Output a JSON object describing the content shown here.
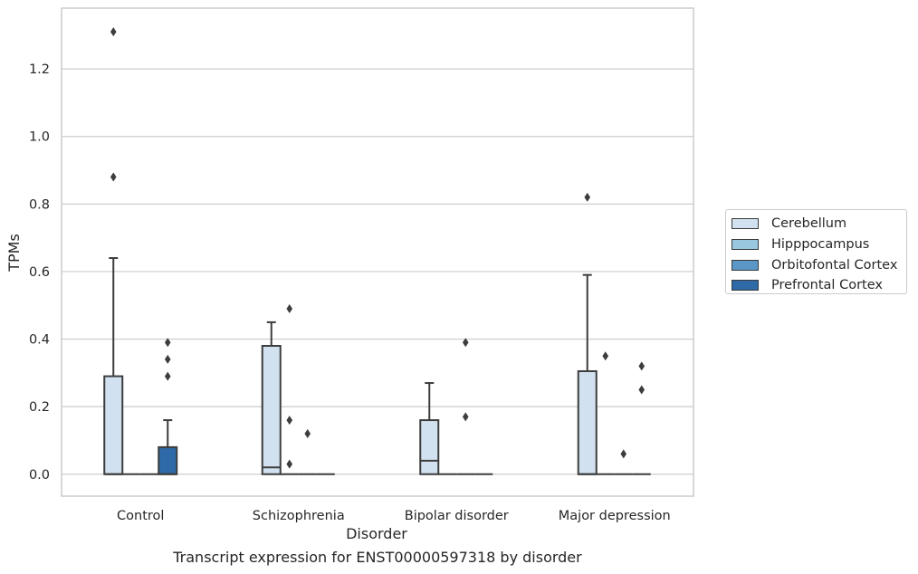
{
  "caption": "Transcript expression for ENST00000597318 by disorder",
  "colors": {
    "Cerebellum": "#d2e1f0",
    "Hipppocampus": "#9ac7e0",
    "Orbitofontal Cortex": "#5a97c6",
    "Prefrontal Cortex": "#2e6aa8",
    "grid": "#cccccc",
    "line": "#3d3d3d"
  },
  "chart_data": {
    "type": "box",
    "xlabel": "Disorder",
    "ylabel": "TPMs",
    "categories": [
      "Control",
      "Schizophrenia",
      "Bipolar disorder",
      "Major depression"
    ],
    "ylim": [
      -0.065,
      1.38
    ],
    "yticks": [
      0.0,
      0.2,
      0.4,
      0.6,
      0.8,
      1.0,
      1.2
    ],
    "ytick_labels": [
      "0.0",
      "0.2",
      "0.4",
      "0.6",
      "0.8",
      "1.0",
      "1.2"
    ],
    "grid": true,
    "legend_position": "right",
    "series": [
      {
        "name": "Cerebellum",
        "boxes": [
          {
            "q1": 0.0,
            "median": 0.0,
            "q3": 0.29,
            "whisker_low": 0.0,
            "whisker_high": 0.64,
            "outliers": [
              0.88,
              1.31
            ]
          },
          {
            "q1": 0.0,
            "median": 0.02,
            "q3": 0.38,
            "whisker_low": 0.0,
            "whisker_high": 0.45,
            "outliers": []
          },
          {
            "q1": 0.0,
            "median": 0.04,
            "q3": 0.16,
            "whisker_low": 0.0,
            "whisker_high": 0.27,
            "outliers": []
          },
          {
            "q1": 0.0,
            "median": 0.0,
            "q3": 0.305,
            "whisker_low": 0.0,
            "whisker_high": 0.59,
            "outliers": [
              0.82
            ]
          }
        ]
      },
      {
        "name": "Hipppocampus",
        "boxes": [
          {
            "q1": 0.0,
            "median": 0.0,
            "q3": 0.0,
            "whisker_low": 0.0,
            "whisker_high": 0.0,
            "outliers": []
          },
          {
            "q1": 0.0,
            "median": 0.0,
            "q3": 0.0,
            "whisker_low": 0.0,
            "whisker_high": 0.0,
            "outliers": [
              0.03,
              0.16,
              0.49
            ]
          },
          {
            "q1": 0.0,
            "median": 0.0,
            "q3": 0.0,
            "whisker_low": 0.0,
            "whisker_high": 0.0,
            "outliers": []
          },
          {
            "q1": 0.0,
            "median": 0.0,
            "q3": 0.0,
            "whisker_low": 0.0,
            "whisker_high": 0.0,
            "outliers": [
              0.35
            ]
          }
        ]
      },
      {
        "name": "Orbitofontal Cortex",
        "boxes": [
          {
            "q1": 0.0,
            "median": 0.0,
            "q3": 0.0,
            "whisker_low": 0.0,
            "whisker_high": 0.0,
            "outliers": []
          },
          {
            "q1": 0.0,
            "median": 0.0,
            "q3": 0.0,
            "whisker_low": 0.0,
            "whisker_high": 0.0,
            "outliers": [
              0.12
            ]
          },
          {
            "q1": 0.0,
            "median": 0.0,
            "q3": 0.0,
            "whisker_low": 0.0,
            "whisker_high": 0.0,
            "outliers": [
              0.17,
              0.39
            ]
          },
          {
            "q1": 0.0,
            "median": 0.0,
            "q3": 0.0,
            "whisker_low": 0.0,
            "whisker_high": 0.0,
            "outliers": [
              0.06
            ]
          }
        ]
      },
      {
        "name": "Prefrontal Cortex",
        "boxes": [
          {
            "q1": 0.0,
            "median": 0.0,
            "q3": 0.08,
            "whisker_low": 0.0,
            "whisker_high": 0.16,
            "outliers": [
              0.29,
              0.34,
              0.39
            ]
          },
          {
            "q1": 0.0,
            "median": 0.0,
            "q3": 0.0,
            "whisker_low": 0.0,
            "whisker_high": 0.0,
            "outliers": []
          },
          {
            "q1": 0.0,
            "median": 0.0,
            "q3": 0.0,
            "whisker_low": 0.0,
            "whisker_high": 0.0,
            "outliers": []
          },
          {
            "q1": 0.0,
            "median": 0.0,
            "q3": 0.0,
            "whisker_low": 0.0,
            "whisker_high": 0.0,
            "outliers": [
              0.25,
              0.32
            ]
          }
        ]
      }
    ]
  }
}
